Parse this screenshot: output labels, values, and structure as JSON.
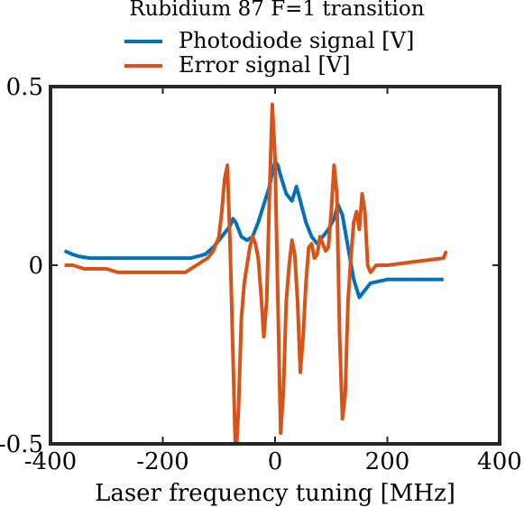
{
  "chart_data": {
    "type": "line",
    "title": "Rubidium 87 F=1 transition",
    "xlabel": "Laser frequency tuning [MHz]",
    "ylabel": "",
    "xlim": [
      -400,
      400
    ],
    "ylim": [
      -0.5,
      0.5
    ],
    "xticks": [
      -400,
      -200,
      0,
      200,
      400
    ],
    "yticks": [
      -0.5,
      0,
      0.5
    ],
    "xtick_labels": [
      "-400",
      "-200",
      "0",
      "200",
      "400"
    ],
    "ytick_labels": [
      "-0.5",
      "0",
      "0.5"
    ],
    "grid": false,
    "legend_position": "top-center",
    "series": [
      {
        "name": "Photodiode signal [V]",
        "color": "#0072bd",
        "x": [
          -375,
          -360,
          -350,
          -330,
          -300,
          -250,
          -200,
          -150,
          -125,
          -110,
          -100,
          -90,
          -80,
          -75,
          -70,
          -65,
          -60,
          -50,
          -40,
          -30,
          -20,
          -10,
          -5,
          0,
          5,
          10,
          20,
          30,
          38,
          45,
          55,
          65,
          75,
          85,
          95,
          105,
          112,
          120,
          130,
          140,
          150,
          160,
          170,
          200,
          250,
          300
        ],
        "y": [
          0.04,
          0.03,
          0.025,
          0.02,
          0.02,
          0.02,
          0.02,
          0.02,
          0.03,
          0.05,
          0.07,
          0.09,
          0.11,
          0.13,
          0.12,
          0.1,
          0.08,
          0.07,
          0.08,
          0.12,
          0.17,
          0.22,
          0.26,
          0.29,
          0.28,
          0.25,
          0.2,
          0.18,
          0.22,
          0.18,
          0.12,
          0.08,
          0.06,
          0.08,
          0.1,
          0.13,
          0.17,
          0.14,
          0.05,
          -0.04,
          -0.09,
          -0.07,
          -0.05,
          -0.04,
          -0.04,
          -0.04
        ]
      },
      {
        "name": "Error signal [V]",
        "color": "#d95319",
        "x": [
          -375,
          -360,
          -340,
          -320,
          -300,
          -280,
          -250,
          -200,
          -160,
          -140,
          -120,
          -110,
          -100,
          -95,
          -90,
          -85,
          -80,
          -75,
          -70,
          -65,
          -60,
          -55,
          -50,
          -45,
          -40,
          -35,
          -30,
          -25,
          -20,
          -15,
          -10,
          -5,
          0,
          5,
          10,
          15,
          20,
          25,
          30,
          35,
          40,
          45,
          50,
          55,
          60,
          65,
          70,
          75,
          80,
          85,
          90,
          95,
          100,
          105,
          110,
          115,
          120,
          125,
          130,
          135,
          140,
          145,
          150,
          155,
          160,
          165,
          170,
          180,
          200,
          250,
          300,
          305
        ],
        "y": [
          0.0,
          0.0,
          -0.01,
          -0.01,
          -0.01,
          -0.02,
          -0.02,
          -0.02,
          -0.02,
          0.0,
          0.02,
          0.04,
          0.08,
          0.15,
          0.24,
          0.28,
          0.05,
          -0.25,
          -0.55,
          -0.4,
          -0.15,
          -0.05,
          0.0,
          0.05,
          0.08,
          0.06,
          0.02,
          -0.08,
          -0.2,
          -0.1,
          0.2,
          0.45,
          0.3,
          -0.1,
          -0.47,
          -0.35,
          -0.1,
          0.0,
          0.07,
          0.03,
          -0.1,
          -0.3,
          -0.2,
          -0.05,
          0.05,
          0.06,
          0.02,
          0.03,
          0.08,
          0.06,
          0.04,
          0.05,
          0.15,
          0.28,
          0.2,
          -0.2,
          -0.43,
          -0.36,
          -0.1,
          0.02,
          0.12,
          0.15,
          0.1,
          0.2,
          0.15,
          0.0,
          -0.02,
          0.0,
          0.0,
          0.01,
          0.02,
          0.04
        ]
      }
    ]
  }
}
